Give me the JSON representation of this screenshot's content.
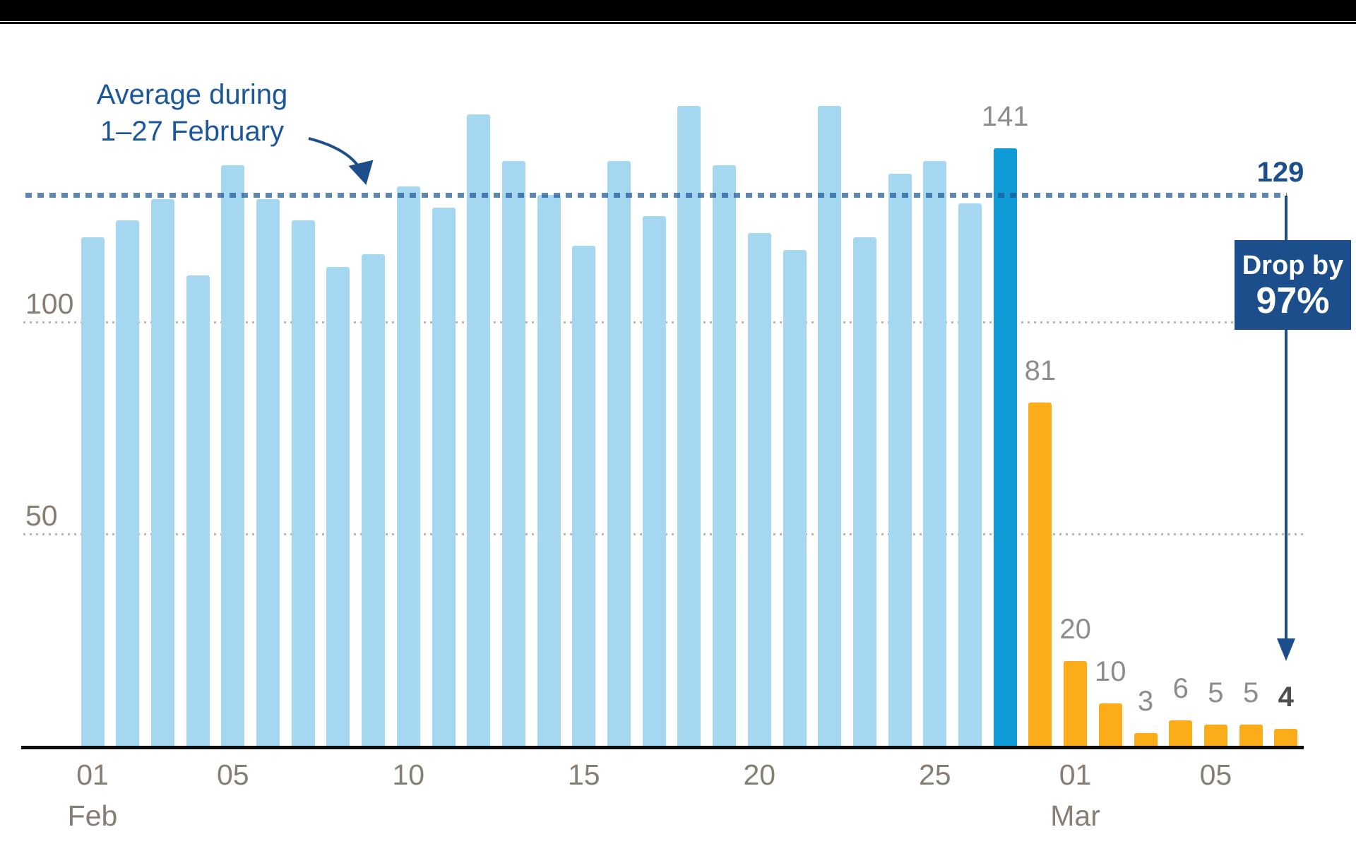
{
  "chart_data": {
    "type": "bar",
    "title": "",
    "annotation": {
      "line1": "Average during",
      "line2": "1–27 February"
    },
    "average": {
      "value": 129,
      "label": "129"
    },
    "callout": {
      "line1": "Drop by",
      "line2": "97%"
    },
    "y_axis": {
      "ticks": [
        {
          "label": "100",
          "value": 100
        },
        {
          "label": "50",
          "value": 50
        }
      ],
      "ylim": [
        0,
        155
      ],
      "grid": true
    },
    "x_axis": {
      "ticks": [
        {
          "label": "01",
          "month": "Feb",
          "day_index": 0
        },
        {
          "label": "05",
          "month": "",
          "day_index": 4
        },
        {
          "label": "10",
          "month": "",
          "day_index": 9
        },
        {
          "label": "15",
          "month": "",
          "day_index": 14
        },
        {
          "label": "20",
          "month": "",
          "day_index": 19
        },
        {
          "label": "25",
          "month": "",
          "day_index": 24
        },
        {
          "label": "01",
          "month": "Mar",
          "day_index": 28
        },
        {
          "label": "05",
          "month": "",
          "day_index": 32
        }
      ]
    },
    "bars": [
      {
        "date": "Feb 01",
        "value": 120,
        "color": "light"
      },
      {
        "date": "Feb 02",
        "value": 124,
        "color": "light"
      },
      {
        "date": "Feb 03",
        "value": 129,
        "color": "light"
      },
      {
        "date": "Feb 04",
        "value": 111,
        "color": "light"
      },
      {
        "date": "Feb 05",
        "value": 137,
        "color": "light"
      },
      {
        "date": "Feb 06",
        "value": 129,
        "color": "light"
      },
      {
        "date": "Feb 07",
        "value": 124,
        "color": "light"
      },
      {
        "date": "Feb 08",
        "value": 113,
        "color": "light"
      },
      {
        "date": "Feb 09",
        "value": 116,
        "color": "light"
      },
      {
        "date": "Feb 10",
        "value": 132,
        "color": "light"
      },
      {
        "date": "Feb 11",
        "value": 127,
        "color": "light"
      },
      {
        "date": "Feb 12",
        "value": 149,
        "color": "light"
      },
      {
        "date": "Feb 13",
        "value": 138,
        "color": "light"
      },
      {
        "date": "Feb 14",
        "value": 130,
        "color": "light"
      },
      {
        "date": "Feb 15",
        "value": 118,
        "color": "light"
      },
      {
        "date": "Feb 16",
        "value": 138,
        "color": "light"
      },
      {
        "date": "Feb 17",
        "value": 125,
        "color": "light"
      },
      {
        "date": "Feb 18",
        "value": 151,
        "color": "light"
      },
      {
        "date": "Feb 19",
        "value": 137,
        "color": "light"
      },
      {
        "date": "Feb 20",
        "value": 121,
        "color": "light"
      },
      {
        "date": "Feb 21",
        "value": 117,
        "color": "light"
      },
      {
        "date": "Feb 22",
        "value": 151,
        "color": "light"
      },
      {
        "date": "Feb 23",
        "value": 120,
        "color": "light"
      },
      {
        "date": "Feb 24",
        "value": 135,
        "color": "light"
      },
      {
        "date": "Feb 25",
        "value": 138,
        "color": "light"
      },
      {
        "date": "Feb 26",
        "value": 128,
        "color": "light"
      },
      {
        "date": "Feb 27",
        "value": 141,
        "color": "dark",
        "label": "141"
      },
      {
        "date": "Feb 28",
        "value": 81,
        "color": "orange",
        "label": "81"
      },
      {
        "date": "Mar 01",
        "value": 20,
        "color": "orange",
        "label": "20"
      },
      {
        "date": "Mar 02",
        "value": 10,
        "color": "orange",
        "label": "10"
      },
      {
        "date": "Mar 03",
        "value": 3,
        "color": "orange",
        "label": "3"
      },
      {
        "date": "Mar 04",
        "value": 6,
        "color": "orange",
        "label": "6"
      },
      {
        "date": "Mar 05",
        "value": 5,
        "color": "orange",
        "label": "5"
      },
      {
        "date": "Mar 06",
        "value": 5,
        "color": "orange",
        "label": "5"
      },
      {
        "date": "Mar 07",
        "value": 4,
        "color": "orange",
        "label": "4",
        "emphasis": true
      }
    ],
    "colors": {
      "light_blue_bar": "#A5D8F0",
      "dark_blue_bar": "#0E9BD8",
      "orange_bar": "#FBAD19",
      "navy_accent": "#1B4E8A",
      "annotation_blue": "#1C5799",
      "axis_label_gray": "#867E74",
      "value_label_gray": "#8C8C8C",
      "emphasis_label_gray": "#4F4F4F",
      "average_dash": "rgba(31,87,150,0.72)"
    }
  }
}
